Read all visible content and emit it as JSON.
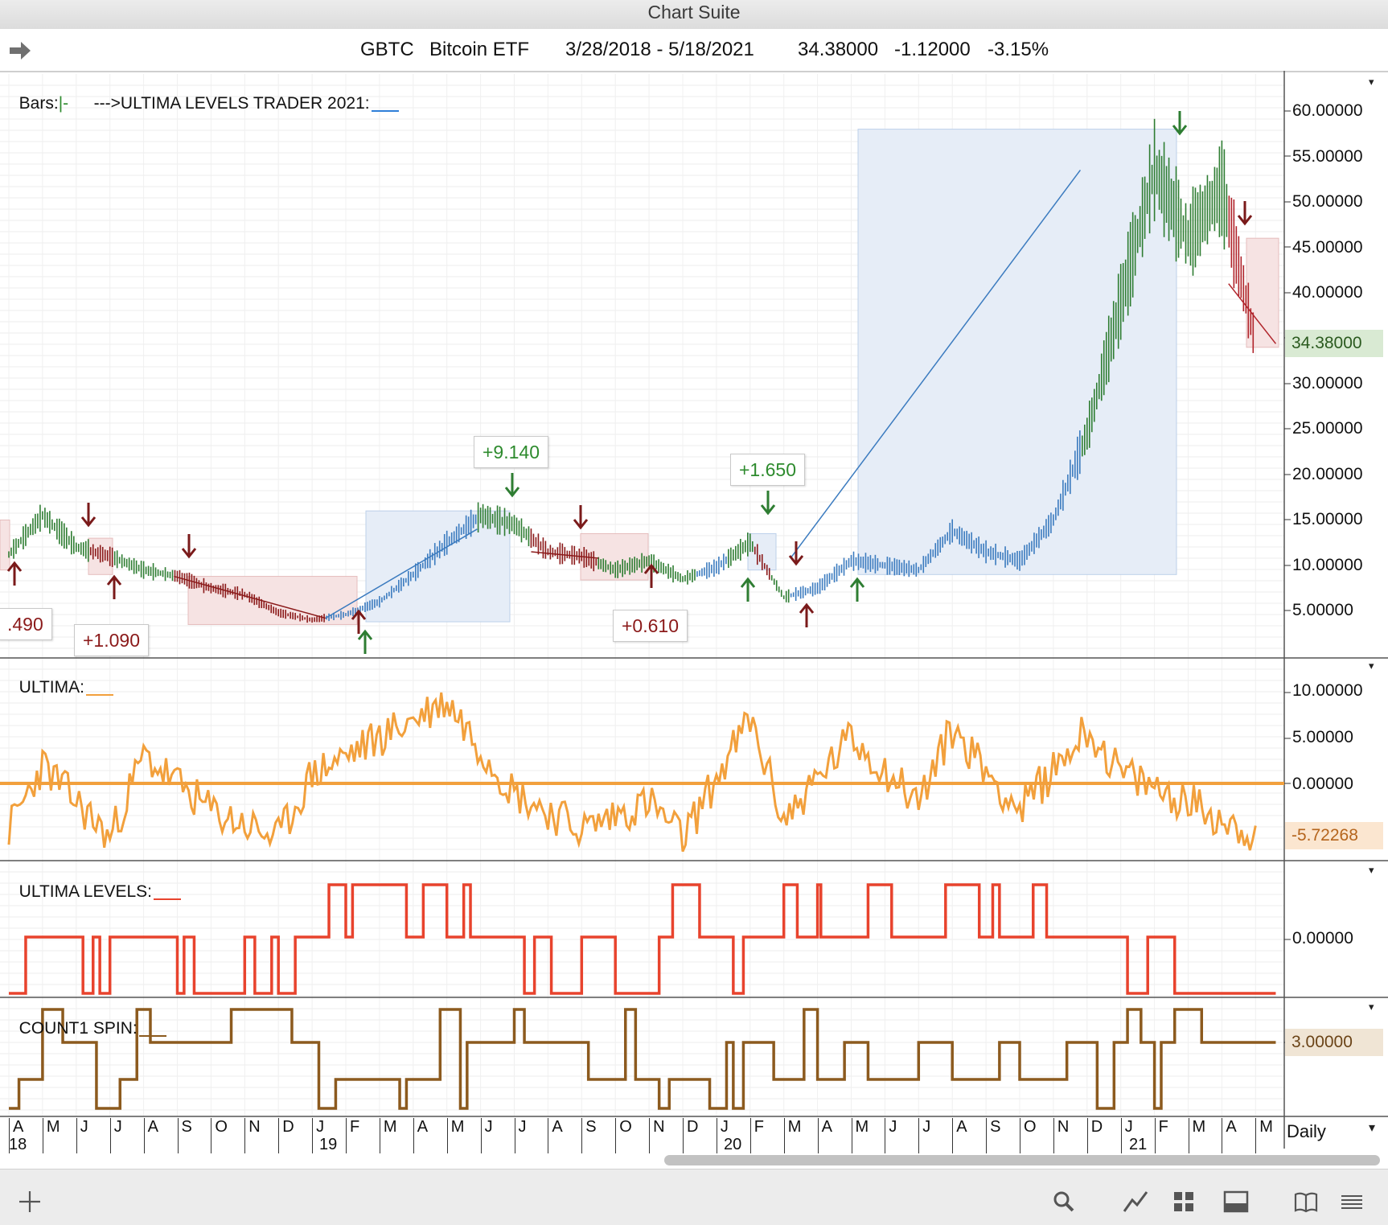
{
  "window": {
    "title": "Chart Suite"
  },
  "header": {
    "symbol": "GBTC",
    "name": "Bitcoin ETF",
    "date_range": "3/28/2018 - 5/18/2021",
    "price": "34.38000",
    "change": "-1.12000",
    "change_pct": "-3.15%"
  },
  "panels": {
    "price": {
      "label": "Bars:",
      "bars_glyph": "|-",
      "study_label": "--->ULTIMA LEVELS TRADER 2021:",
      "study_color": "#2f7fd8"
    },
    "ultima": {
      "label": "ULTIMA:",
      "color": "#f2a03c"
    },
    "levels": {
      "label": "ULTIMA LEVELS:",
      "color": "#e8432d"
    },
    "spin": {
      "label": "COUNT1 SPIN:",
      "color": "#8c5a1e"
    }
  },
  "axes": {
    "price_ticks": [
      "60.00000",
      "55.00000",
      "50.00000",
      "45.00000",
      "40.00000",
      "30.00000",
      "25.00000",
      "20.00000",
      "15.00000",
      "10.00000",
      "5.00000"
    ],
    "price_last": "34.38000",
    "ultima_ticks": [
      "10.00000",
      "5.00000",
      "0.00000"
    ],
    "ultima_last": "-5.72268",
    "levels_ticks": [
      "0.00000"
    ],
    "spin_last": "3.00000"
  },
  "trade_labels": [
    {
      "text": ".490",
      "color": "#8b1a1a"
    },
    {
      "text": "+1.090",
      "color": "#8b1a1a"
    },
    {
      "text": "+9.140",
      "color": "#2e8b2e"
    },
    {
      "text": "+0.610",
      "color": "#8b1a1a"
    },
    {
      "text": "+1.650",
      "color": "#2e8b2e"
    }
  ],
  "timeline": {
    "months": [
      "A",
      "M",
      "J",
      "J",
      "A",
      "S",
      "O",
      "N",
      "D",
      "J",
      "F",
      "M",
      "A",
      "M",
      "J",
      "J",
      "A",
      "S",
      "O",
      "N",
      "D",
      "J",
      "F",
      "M",
      "A",
      "M",
      "J",
      "J",
      "A",
      "S",
      "O",
      "N",
      "D",
      "J",
      "F",
      "M",
      "A",
      "M"
    ],
    "years": [
      "18",
      "19",
      "20",
      "21"
    ],
    "period": "Daily"
  },
  "chart_data": {
    "type": "line",
    "title": "",
    "ylabel": "",
    "ylim": [
      0,
      62
    ],
    "x": [
      "2018-04",
      "2018-05",
      "2018-06",
      "2018-07",
      "2018-08",
      "2018-09",
      "2018-10",
      "2018-11",
      "2018-12",
      "2019-01",
      "2019-02",
      "2019-03",
      "2019-04",
      "2019-05",
      "2019-06",
      "2019-07",
      "2019-08",
      "2019-09",
      "2019-10",
      "2019-11",
      "2019-12",
      "2020-01",
      "2020-02",
      "2020-03",
      "2020-04",
      "2020-05",
      "2020-06",
      "2020-07",
      "2020-08",
      "2020-09",
      "2020-10",
      "2020-11",
      "2020-12",
      "2021-01",
      "2021-02",
      "2021-03",
      "2021-04",
      "2021-05"
    ],
    "series": [
      {
        "name": "GBTC",
        "values": [
          11.2,
          15.5,
          12.0,
          11.0,
          9.5,
          8.8,
          7.5,
          6.8,
          4.8,
          4.0,
          4.6,
          6.0,
          9.0,
          12.5,
          15.5,
          14.5,
          11.5,
          11.0,
          9.5,
          10.5,
          8.5,
          9.8,
          12.5,
          6.5,
          7.5,
          10.5,
          10.0,
          9.5,
          13.8,
          11.5,
          10.5,
          15.0,
          24.5,
          39.0,
          53.5,
          46.0,
          51.5,
          34.38
        ]
      }
    ],
    "indicators": {
      "ultima_zero": 0,
      "levels_zero": 0,
      "spin_last": 3.0,
      "ultima_last": -5.72268
    }
  }
}
